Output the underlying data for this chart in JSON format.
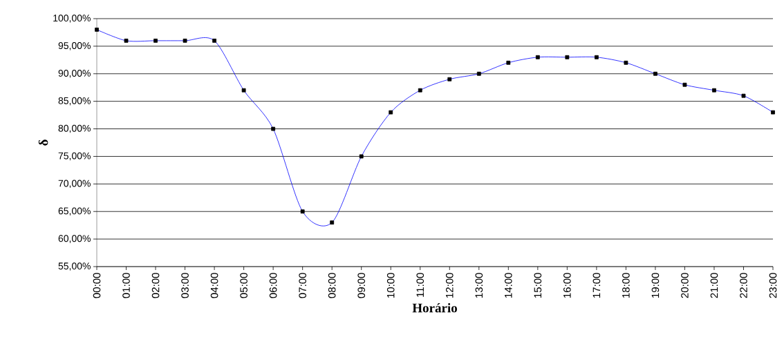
{
  "chart_data": {
    "type": "line",
    "xlabel": "Horário",
    "ylabel": "δ",
    "categories": [
      "00:00",
      "01:00",
      "02:00",
      "03:00",
      "04:00",
      "05:00",
      "06:00",
      "07:00",
      "08:00",
      "09:00",
      "10:00",
      "11:00",
      "12:00",
      "13:00",
      "14:00",
      "15:00",
      "16:00",
      "17:00",
      "18:00",
      "19:00",
      "20:00",
      "21:00",
      "22:00",
      "23:00"
    ],
    "series": [
      {
        "color": "#0000ff",
        "values": [
          98,
          96,
          96,
          96,
          96,
          87,
          80,
          65,
          63,
          75,
          83,
          87,
          89,
          90,
          92,
          93,
          93,
          93,
          92,
          90,
          88,
          87,
          86,
          83
        ]
      }
    ],
    "ylim": [
      55,
      100
    ],
    "yticks": [
      {
        "value": 55,
        "label": "55,00%"
      },
      {
        "value": 60,
        "label": "60,00%"
      },
      {
        "value": 65,
        "label": "65,00%"
      },
      {
        "value": 70,
        "label": "70,00%"
      },
      {
        "value": 75,
        "label": "75,00%"
      },
      {
        "value": 80,
        "label": "80,00%"
      },
      {
        "value": 85,
        "label": "85,00%"
      },
      {
        "value": 90,
        "label": "90,00%"
      },
      {
        "value": 95,
        "label": "95,00%"
      },
      {
        "value": 100,
        "label": "100,00%"
      }
    ],
    "grid": "y",
    "marker": "square",
    "line_style": "solid"
  }
}
